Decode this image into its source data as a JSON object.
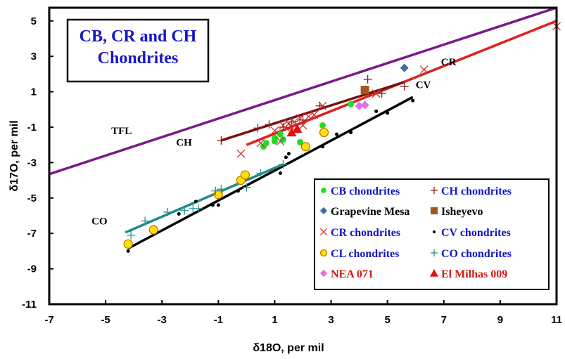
{
  "chart_data": {
    "type": "scatter",
    "title": "CB, CR and CH Chondrites",
    "title_lines": [
      "CB, CR and CH",
      "Chondrites"
    ],
    "xlabel": "δ18O, per mil",
    "ylabel": "δ17O, per mil",
    "xlim": [
      -7,
      11
    ],
    "ylim": [
      -11,
      6
    ],
    "xticks": [
      "-7",
      "-5",
      "-3",
      "-1",
      "1",
      "3",
      "5",
      "7",
      "9",
      "11"
    ],
    "yticks": [
      "5",
      "3",
      "1",
      "-1",
      "-3",
      "-5",
      "-7",
      "-9",
      "-11"
    ],
    "xtick_values": [
      -7,
      -5,
      -3,
      -1,
      1,
      3,
      5,
      7,
      9,
      11
    ],
    "ytick_values": [
      5,
      3,
      1,
      -1,
      -3,
      -5,
      -7,
      -9,
      -11
    ],
    "legend_position": "bottom-right",
    "lines": [
      {
        "name": "TFL",
        "color": "#7b1a8a",
        "x": [
          -7,
          11
        ],
        "y": [
          -3.65,
          5.75
        ]
      },
      {
        "name": "CR",
        "color": "#e01e1e",
        "x": [
          0.0,
          11
        ],
        "y": [
          -2.0,
          5.0
        ]
      },
      {
        "name": "CH",
        "color": "#7a1010",
        "x": [
          -0.9,
          5.6
        ],
        "y": [
          -1.75,
          1.55
        ]
      },
      {
        "name": "CV",
        "color": "#000000",
        "x": [
          -4.2,
          5.9
        ],
        "y": [
          -7.85,
          0.7
        ]
      },
      {
        "name": "CO",
        "color": "#1f8a8a",
        "x": [
          -4.3,
          1.3
        ],
        "y": [
          -6.95,
          -3.1
        ]
      }
    ],
    "annotations": [
      {
        "text": "TFL",
        "x": -4.8,
        "y": -1.4
      },
      {
        "text": "CH",
        "x": -2.5,
        "y": -2.05
      },
      {
        "text": "CR",
        "x": 6.9,
        "y": 2.5
      },
      {
        "text": "CV",
        "x": 6.0,
        "y": 1.2
      },
      {
        "text": "CO",
        "x": -5.5,
        "y": -6.5
      }
    ],
    "series": [
      {
        "name": "CB chondrites",
        "marker": "circle",
        "color": "#22dd22",
        "label_color": "#1515c8",
        "x": [
          0.6,
          0.7,
          1.0,
          1.0,
          1.2,
          1.3,
          1.9,
          2.7,
          3.7
        ],
        "y": [
          -2.1,
          -1.9,
          -1.8,
          -1.6,
          -1.4,
          -1.7,
          -1.85,
          -0.9,
          0.3
        ]
      },
      {
        "name": "CH chondrites",
        "marker": "plus",
        "color": "#8b2020",
        "label_color": "#1515c8",
        "x": [
          -0.9,
          0.4,
          0.8,
          1.3,
          1.6,
          2.0,
          2.6,
          4.3,
          4.8,
          5.6
        ],
        "y": [
          -1.75,
          -1.05,
          -0.85,
          -1.0,
          -0.7,
          -0.6,
          0.2,
          1.7,
          0.9,
          1.3
        ]
      },
      {
        "name": "Grapevine Mesa",
        "marker": "diamond",
        "color": "#3a6fa0",
        "label_color": "#000000",
        "x": [
          5.6
        ],
        "y": [
          2.35
        ]
      },
      {
        "name": "Isheyevo",
        "marker": "square",
        "color": "#a0561e",
        "label_color": "#000000",
        "x": [
          4.2
        ],
        "y": [
          1.1
        ]
      },
      {
        "name": "CR chondrites",
        "marker": "x",
        "color": "#c83030",
        "label_color": "#1515c8",
        "x": [
          -0.2,
          0.5,
          1.0,
          1.2,
          1.3,
          1.5,
          1.6,
          1.7,
          1.9,
          2.0,
          2.2,
          2.4,
          2.7,
          4.6,
          6.3,
          11.0
        ],
        "y": [
          -2.5,
          -1.9,
          -1.2,
          -1.8,
          -0.9,
          -0.8,
          -1.0,
          -0.7,
          -0.5,
          -0.9,
          -0.4,
          -0.3,
          0.2,
          0.9,
          2.25,
          4.7
        ]
      },
      {
        "name": "CV chondrites",
        "marker": "dot",
        "color": "#000000",
        "label_color": "#1515c8",
        "x": [
          -4.2,
          -2.4,
          -1.8,
          -1.2,
          -1.0,
          -0.3,
          1.2,
          1.4,
          1.5,
          2.7,
          3.2,
          3.7,
          4.6,
          5.0,
          5.9
        ],
        "y": [
          -8.0,
          -5.9,
          -5.2,
          -5.4,
          -5.4,
          -4.6,
          -3.6,
          -2.7,
          -2.5,
          -2.1,
          -1.4,
          -1.3,
          -0.1,
          -0.2,
          0.5
        ]
      },
      {
        "name": "CL chondrites",
        "marker": "circle-outline",
        "color": "#ffe100",
        "edge": "#c07000",
        "label_color": "#1515c8",
        "x": [
          -4.2,
          -3.3,
          -1.0,
          -0.2,
          -0.05,
          2.1,
          2.75
        ],
        "y": [
          -7.6,
          -6.8,
          -4.8,
          -4.0,
          -3.7,
          -2.1,
          -1.3
        ]
      },
      {
        "name": "CO chondrites",
        "marker": "plus",
        "color": "#2a9090",
        "label_color": "#1515c8",
        "x": [
          -4.1,
          -3.6,
          -2.8,
          -2.2,
          -1.9,
          -1.7,
          -1.1,
          -0.9,
          0.0,
          0.5,
          1.3
        ],
        "y": [
          -7.1,
          -6.3,
          -5.8,
          -5.7,
          -5.6,
          -5.6,
          -4.6,
          -4.5,
          -4.4,
          -3.6,
          -3.1
        ]
      },
      {
        "name": "NEA 071",
        "marker": "diamond",
        "color": "#e070e8",
        "label_color": "#d01a1a",
        "x": [
          4.0,
          4.2
        ],
        "y": [
          0.2,
          0.25
        ]
      },
      {
        "name": "El Milhas 009",
        "marker": "triangle",
        "color": "#e01010",
        "label_color": "#d01a1a",
        "x": [
          1.6,
          1.8
        ],
        "y": [
          -1.3,
          -1.1
        ]
      }
    ]
  }
}
